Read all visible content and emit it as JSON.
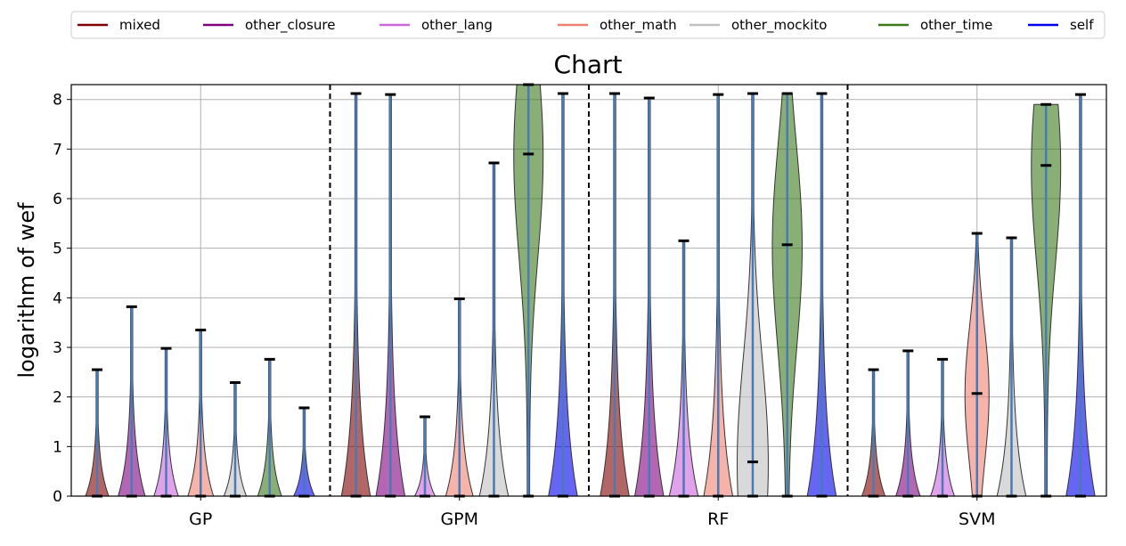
{
  "chart_data": {
    "type": "violin",
    "title": "Chart",
    "xlabel": "",
    "ylabel": "logarithm of wef",
    "ylim": [
      0,
      8.3
    ],
    "yticks": [
      0,
      1,
      2,
      3,
      4,
      5,
      6,
      7,
      8
    ],
    "grid": true,
    "legend_position": "top",
    "categories": [
      "GP",
      "GPM",
      "RF",
      "SVM"
    ],
    "series": [
      {
        "name": "mixed",
        "color": "#800000",
        "max": [
          2.55,
          8.12,
          8.12,
          2.55
        ],
        "median": [
          0,
          0,
          0,
          0
        ]
      },
      {
        "name": "other_closure",
        "color": "#800080",
        "max": [
          3.82,
          8.1,
          8.03,
          2.93
        ],
        "median": [
          0,
          0,
          0,
          0
        ]
      },
      {
        "name": "other_lang",
        "color": "#cc66dd",
        "max": [
          2.98,
          1.6,
          5.15,
          2.76
        ],
        "median": [
          0,
          0,
          0,
          0
        ]
      },
      {
        "name": "other_math",
        "color": "#f08070",
        "max": [
          3.35,
          3.98,
          8.1,
          5.3
        ],
        "median": [
          0,
          0,
          0,
          2.07
        ]
      },
      {
        "name": "other_mockito",
        "color": "#c0c0c0",
        "max": [
          2.29,
          6.72,
          8.12,
          5.21
        ],
        "median": [
          0,
          0,
          0.69,
          0
        ]
      },
      {
        "name": "other_time",
        "color": "#3a7a1a",
        "max": [
          2.76,
          8.3,
          8.12,
          7.9
        ],
        "median": [
          0,
          6.9,
          5.07,
          6.67
        ]
      },
      {
        "name": "self",
        "color": "#0000ee",
        "max": [
          1.78,
          8.12,
          8.12,
          8.1
        ],
        "median": [
          0,
          0,
          0,
          0
        ]
      }
    ]
  }
}
